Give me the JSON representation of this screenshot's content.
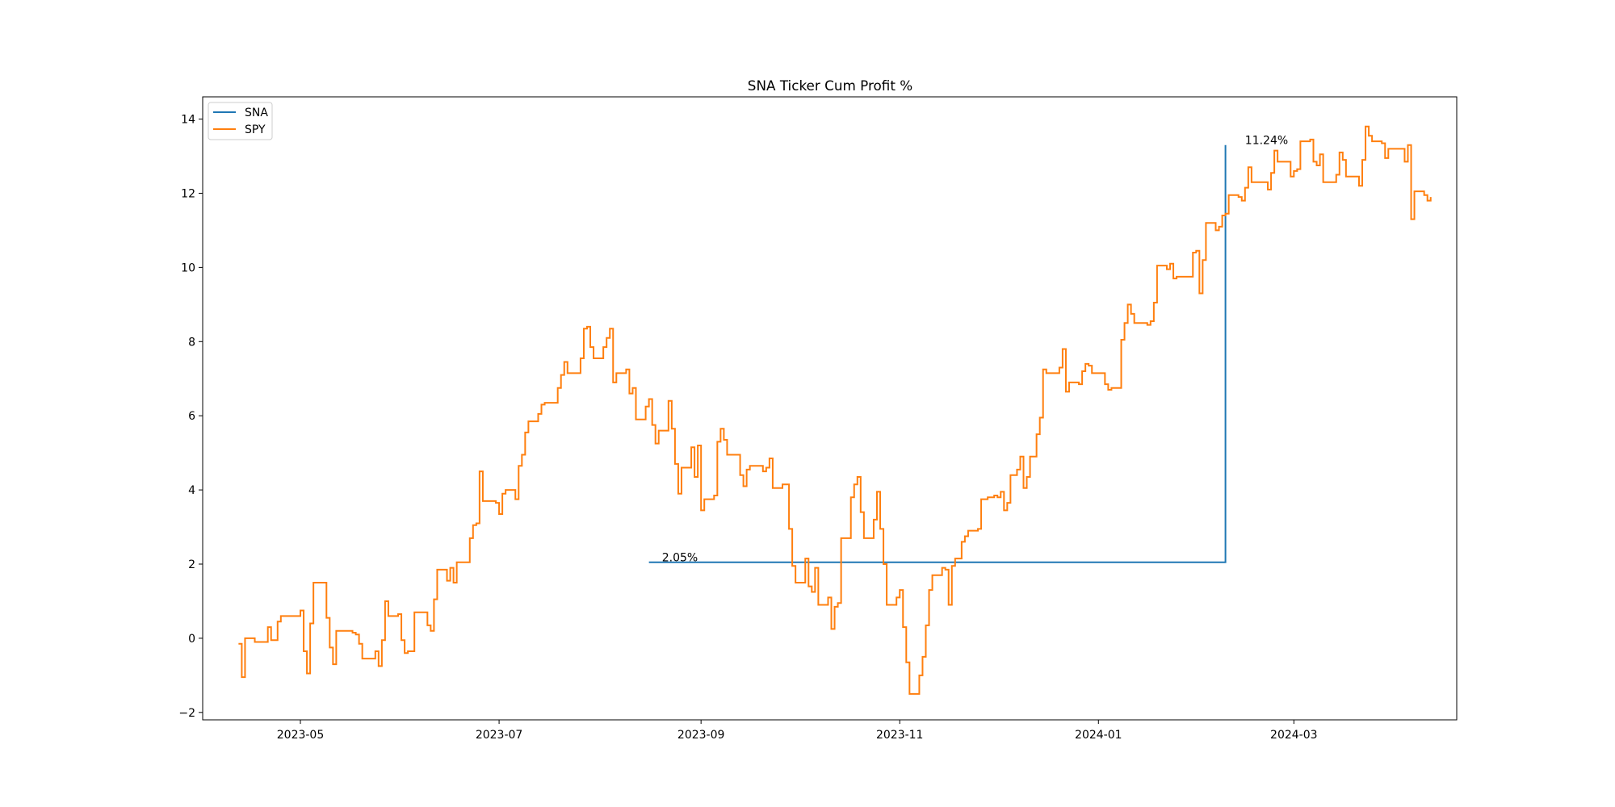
{
  "chart_data": {
    "type": "line",
    "title": "SNA Ticker Cum Profit %",
    "xlabel": "",
    "ylabel": "",
    "xlim": [
      "2023-04-01",
      "2024-04-20"
    ],
    "ylim": [
      -2.2,
      14.6
    ],
    "grid": false,
    "legend_position": "top-left",
    "x_ticks": [
      "2023-05",
      "2023-07",
      "2023-09",
      "2023-11",
      "2024-01",
      "2024-03"
    ],
    "y_ticks": [
      -2,
      0,
      2,
      4,
      6,
      8,
      10,
      12,
      14
    ],
    "colors": {
      "SNA": "#1f77b4",
      "SPY": "#ff7f0e"
    },
    "series": [
      {
        "name": "SNA",
        "step": true,
        "points": [
          [
            "2023-08-16",
            2.05
          ],
          [
            "2024-02-09",
            2.05
          ],
          [
            "2024-02-09",
            13.3
          ]
        ]
      },
      {
        "name": "SPY",
        "step": true,
        "points": [
          [
            "2023-04-12",
            -0.15
          ],
          [
            "2023-04-13",
            -1.05
          ],
          [
            "2023-04-14",
            0.0
          ],
          [
            "2023-04-17",
            -0.1
          ],
          [
            "2023-04-20",
            -0.1
          ],
          [
            "2023-04-21",
            0.3
          ],
          [
            "2023-04-22",
            -0.05
          ],
          [
            "2023-04-24",
            0.45
          ],
          [
            "2023-04-25",
            0.6
          ],
          [
            "2023-04-28",
            0.6
          ],
          [
            "2023-05-01",
            0.75
          ],
          [
            "2023-05-02",
            -0.35
          ],
          [
            "2023-05-03",
            -0.95
          ],
          [
            "2023-05-04",
            0.4
          ],
          [
            "2023-05-05",
            1.5
          ],
          [
            "2023-05-09",
            0.55
          ],
          [
            "2023-05-10",
            -0.25
          ],
          [
            "2023-05-11",
            -0.7
          ],
          [
            "2023-05-12",
            0.2
          ],
          [
            "2023-05-15",
            0.2
          ],
          [
            "2023-05-17",
            0.15
          ],
          [
            "2023-05-18",
            0.1
          ],
          [
            "2023-05-19",
            -0.15
          ],
          [
            "2023-05-20",
            -0.55
          ],
          [
            "2023-05-22",
            -0.55
          ],
          [
            "2023-05-24",
            -0.35
          ],
          [
            "2023-05-25",
            -0.75
          ],
          [
            "2023-05-26",
            -0.05
          ],
          [
            "2023-05-27",
            1.0
          ],
          [
            "2023-05-28",
            0.6
          ],
          [
            "2023-05-31",
            0.65
          ],
          [
            "2023-06-01",
            -0.05
          ],
          [
            "2023-06-02",
            -0.4
          ],
          [
            "2023-06-03",
            -0.35
          ],
          [
            "2023-06-05",
            0.7
          ],
          [
            "2023-06-06",
            0.7
          ],
          [
            "2023-06-09",
            0.35
          ],
          [
            "2023-06-10",
            0.2
          ],
          [
            "2023-06-11",
            1.05
          ],
          [
            "2023-06-12",
            1.85
          ],
          [
            "2023-06-14",
            1.85
          ],
          [
            "2023-06-15",
            1.55
          ],
          [
            "2023-06-16",
            1.9
          ],
          [
            "2023-06-17",
            1.5
          ],
          [
            "2023-06-18",
            2.05
          ],
          [
            "2023-06-21",
            2.05
          ],
          [
            "2023-06-22",
            2.7
          ],
          [
            "2023-06-23",
            3.05
          ],
          [
            "2023-06-24",
            3.1
          ],
          [
            "2023-06-25",
            4.5
          ],
          [
            "2023-06-26",
            3.7
          ],
          [
            "2023-06-28",
            3.7
          ],
          [
            "2023-06-30",
            3.65
          ],
          [
            "2023-07-01",
            3.35
          ],
          [
            "2023-07-02",
            3.9
          ],
          [
            "2023-07-03",
            4.0
          ],
          [
            "2023-07-05",
            4.0
          ],
          [
            "2023-07-06",
            3.75
          ],
          [
            "2023-07-07",
            4.65
          ],
          [
            "2023-07-08",
            4.95
          ],
          [
            "2023-07-09",
            5.55
          ],
          [
            "2023-07-10",
            5.85
          ],
          [
            "2023-07-12",
            5.85
          ],
          [
            "2023-07-13",
            6.05
          ],
          [
            "2023-07-14",
            6.3
          ],
          [
            "2023-07-15",
            6.35
          ],
          [
            "2023-07-18",
            6.35
          ],
          [
            "2023-07-19",
            6.75
          ],
          [
            "2023-07-20",
            7.1
          ],
          [
            "2023-07-21",
            7.45
          ],
          [
            "2023-07-22",
            7.15
          ],
          [
            "2023-07-25",
            7.15
          ],
          [
            "2023-07-26",
            7.55
          ],
          [
            "2023-07-27",
            8.35
          ],
          [
            "2023-07-28",
            8.4
          ],
          [
            "2023-07-29",
            7.85
          ],
          [
            "2023-07-30",
            7.55
          ],
          [
            "2023-08-01",
            7.55
          ],
          [
            "2023-08-02",
            7.85
          ],
          [
            "2023-08-03",
            8.1
          ],
          [
            "2023-08-04",
            8.35
          ],
          [
            "2023-08-05",
            6.9
          ],
          [
            "2023-08-06",
            7.15
          ],
          [
            "2023-08-08",
            7.15
          ],
          [
            "2023-08-09",
            7.25
          ],
          [
            "2023-08-10",
            6.6
          ],
          [
            "2023-08-11",
            6.75
          ],
          [
            "2023-08-12",
            5.9
          ],
          [
            "2023-08-14",
            5.9
          ],
          [
            "2023-08-15",
            6.25
          ],
          [
            "2023-08-16",
            6.45
          ],
          [
            "2023-08-17",
            5.75
          ],
          [
            "2023-08-18",
            5.25
          ],
          [
            "2023-08-19",
            5.6
          ],
          [
            "2023-08-21",
            5.6
          ],
          [
            "2023-08-22",
            6.4
          ],
          [
            "2023-08-23",
            5.65
          ],
          [
            "2023-08-24",
            4.7
          ],
          [
            "2023-08-25",
            3.9
          ],
          [
            "2023-08-26",
            4.6
          ],
          [
            "2023-08-28",
            4.6
          ],
          [
            "2023-08-29",
            5.15
          ],
          [
            "2023-08-30",
            4.35
          ],
          [
            "2023-08-31",
            5.2
          ],
          [
            "2023-09-01",
            3.45
          ],
          [
            "2023-09-02",
            3.75
          ],
          [
            "2023-09-04",
            3.75
          ],
          [
            "2023-09-05",
            3.85
          ],
          [
            "2023-09-06",
            5.3
          ],
          [
            "2023-09-07",
            5.65
          ],
          [
            "2023-09-08",
            5.35
          ],
          [
            "2023-09-09",
            4.95
          ],
          [
            "2023-09-12",
            4.95
          ],
          [
            "2023-09-13",
            4.4
          ],
          [
            "2023-09-14",
            4.1
          ],
          [
            "2023-09-15",
            4.55
          ],
          [
            "2023-09-16",
            4.65
          ],
          [
            "2023-09-19",
            4.65
          ],
          [
            "2023-09-20",
            4.5
          ],
          [
            "2023-09-21",
            4.6
          ],
          [
            "2023-09-22",
            4.85
          ],
          [
            "2023-09-23",
            4.05
          ],
          [
            "2023-09-25",
            4.05
          ],
          [
            "2023-09-26",
            4.15
          ],
          [
            "2023-09-28",
            2.95
          ],
          [
            "2023-09-29",
            1.95
          ],
          [
            "2023-09-30",
            1.5
          ],
          [
            "2023-10-02",
            1.5
          ],
          [
            "2023-10-03",
            2.15
          ],
          [
            "2023-10-04",
            1.4
          ],
          [
            "2023-10-05",
            1.25
          ],
          [
            "2023-10-06",
            1.9
          ],
          [
            "2023-10-07",
            0.9
          ],
          [
            "2023-10-09",
            0.9
          ],
          [
            "2023-10-10",
            1.1
          ],
          [
            "2023-10-11",
            0.25
          ],
          [
            "2023-10-12",
            0.85
          ],
          [
            "2023-10-13",
            0.95
          ],
          [
            "2023-10-14",
            2.7
          ],
          [
            "2023-10-16",
            2.7
          ],
          [
            "2023-10-17",
            3.8
          ],
          [
            "2023-10-18",
            4.15
          ],
          [
            "2023-10-19",
            4.35
          ],
          [
            "2023-10-20",
            3.4
          ],
          [
            "2023-10-21",
            2.7
          ],
          [
            "2023-10-23",
            2.7
          ],
          [
            "2023-10-24",
            3.2
          ],
          [
            "2023-10-25",
            3.95
          ],
          [
            "2023-10-26",
            2.95
          ],
          [
            "2023-10-27",
            2.0
          ],
          [
            "2023-10-28",
            0.9
          ],
          [
            "2023-10-30",
            0.9
          ],
          [
            "2023-10-31",
            1.1
          ],
          [
            "2023-11-01",
            1.3
          ],
          [
            "2023-11-02",
            0.3
          ],
          [
            "2023-11-03",
            -0.65
          ],
          [
            "2023-11-04",
            -1.5
          ],
          [
            "2023-11-06",
            -1.5
          ],
          [
            "2023-11-07",
            -1.0
          ],
          [
            "2023-11-08",
            -0.5
          ],
          [
            "2023-11-09",
            0.35
          ],
          [
            "2023-11-10",
            1.3
          ],
          [
            "2023-11-11",
            1.7
          ],
          [
            "2023-11-13",
            1.7
          ],
          [
            "2023-11-14",
            1.9
          ],
          [
            "2023-11-15",
            1.85
          ],
          [
            "2023-11-16",
            0.9
          ],
          [
            "2023-11-17",
            1.95
          ],
          [
            "2023-11-18",
            2.15
          ],
          [
            "2023-11-20",
            2.6
          ],
          [
            "2023-11-21",
            2.75
          ],
          [
            "2023-11-22",
            2.9
          ],
          [
            "2023-11-25",
            2.95
          ],
          [
            "2023-11-26",
            3.75
          ],
          [
            "2023-11-28",
            3.8
          ],
          [
            "2023-11-30",
            3.85
          ],
          [
            "2023-12-01",
            3.8
          ],
          [
            "2023-12-02",
            3.95
          ],
          [
            "2023-12-03",
            3.45
          ],
          [
            "2023-12-04",
            3.65
          ],
          [
            "2023-12-05",
            4.4
          ],
          [
            "2023-12-07",
            4.55
          ],
          [
            "2023-12-08",
            4.9
          ],
          [
            "2023-12-09",
            4.05
          ],
          [
            "2023-12-10",
            4.35
          ],
          [
            "2023-12-11",
            4.9
          ],
          [
            "2023-12-13",
            5.5
          ],
          [
            "2023-12-14",
            5.95
          ],
          [
            "2023-12-15",
            7.25
          ],
          [
            "2023-12-16",
            7.15
          ],
          [
            "2023-12-19",
            7.15
          ],
          [
            "2023-12-20",
            7.3
          ],
          [
            "2023-12-21",
            7.8
          ],
          [
            "2023-12-22",
            6.65
          ],
          [
            "2023-12-23",
            6.9
          ],
          [
            "2023-12-26",
            6.85
          ],
          [
            "2023-12-27",
            7.2
          ],
          [
            "2023-12-28",
            7.4
          ],
          [
            "2023-12-29",
            7.35
          ],
          [
            "2023-12-30",
            7.15
          ],
          [
            "2024-01-02",
            7.15
          ],
          [
            "2024-01-03",
            6.85
          ],
          [
            "2024-01-04",
            6.7
          ],
          [
            "2024-01-05",
            6.75
          ],
          [
            "2024-01-07",
            6.75
          ],
          [
            "2024-01-08",
            8.05
          ],
          [
            "2024-01-09",
            8.5
          ],
          [
            "2024-01-10",
            9.0
          ],
          [
            "2024-01-11",
            8.75
          ],
          [
            "2024-01-12",
            8.5
          ],
          [
            "2024-01-15",
            8.5
          ],
          [
            "2024-01-16",
            8.45
          ],
          [
            "2024-01-17",
            8.55
          ],
          [
            "2024-01-18",
            9.05
          ],
          [
            "2024-01-19",
            10.05
          ],
          [
            "2024-01-20",
            10.05
          ],
          [
            "2024-01-22",
            9.95
          ],
          [
            "2024-01-23",
            10.1
          ],
          [
            "2024-01-24",
            9.7
          ],
          [
            "2024-01-25",
            9.75
          ],
          [
            "2024-01-29",
            9.75
          ],
          [
            "2024-01-30",
            10.4
          ],
          [
            "2024-01-31",
            10.45
          ],
          [
            "2024-02-01",
            9.3
          ],
          [
            "2024-02-02",
            10.2
          ],
          [
            "2024-02-03",
            11.2
          ],
          [
            "2024-02-05",
            11.2
          ],
          [
            "2024-02-06",
            11.0
          ],
          [
            "2024-02-07",
            11.1
          ],
          [
            "2024-02-08",
            11.4
          ],
          [
            "2024-02-09",
            11.45
          ],
          [
            "2024-02-10",
            11.95
          ],
          [
            "2024-02-13",
            11.9
          ],
          [
            "2024-02-14",
            11.8
          ],
          [
            "2024-02-15",
            12.15
          ],
          [
            "2024-02-16",
            12.7
          ],
          [
            "2024-02-17",
            12.3
          ],
          [
            "2024-02-21",
            12.3
          ],
          [
            "2024-02-22",
            12.1
          ],
          [
            "2024-02-23",
            12.55
          ],
          [
            "2024-02-24",
            13.15
          ],
          [
            "2024-02-25",
            12.85
          ],
          [
            "2024-02-28",
            12.85
          ],
          [
            "2024-02-29",
            12.45
          ],
          [
            "2024-03-01",
            12.6
          ],
          [
            "2024-03-02",
            12.65
          ],
          [
            "2024-03-03",
            13.4
          ],
          [
            "2024-03-06",
            13.45
          ],
          [
            "2024-03-07",
            12.85
          ],
          [
            "2024-03-08",
            12.75
          ],
          [
            "2024-03-09",
            13.05
          ],
          [
            "2024-03-10",
            12.3
          ],
          [
            "2024-03-13",
            12.3
          ],
          [
            "2024-03-14",
            12.5
          ],
          [
            "2024-03-15",
            13.1
          ],
          [
            "2024-03-16",
            12.9
          ],
          [
            "2024-03-17",
            12.45
          ],
          [
            "2024-03-20",
            12.45
          ],
          [
            "2024-03-21",
            12.2
          ],
          [
            "2024-03-22",
            12.9
          ],
          [
            "2024-03-23",
            13.8
          ],
          [
            "2024-03-24",
            13.55
          ],
          [
            "2024-03-25",
            13.4
          ],
          [
            "2024-03-28",
            13.35
          ],
          [
            "2024-03-29",
            12.95
          ],
          [
            "2024-03-30",
            13.2
          ],
          [
            "2024-04-03",
            13.2
          ],
          [
            "2024-04-04",
            12.85
          ],
          [
            "2024-04-05",
            13.3
          ],
          [
            "2024-04-06",
            11.3
          ],
          [
            "2024-04-07",
            12.05
          ],
          [
            "2024-04-10",
            11.95
          ],
          [
            "2024-04-11",
            11.8
          ],
          [
            "2024-04-12",
            11.9
          ]
        ]
      }
    ],
    "annotations": [
      {
        "text": "2.05%",
        "x": "2023-08-20",
        "y": 2.05
      },
      {
        "text": "11.24%",
        "x": "2024-02-15",
        "y": 13.3
      }
    ]
  }
}
